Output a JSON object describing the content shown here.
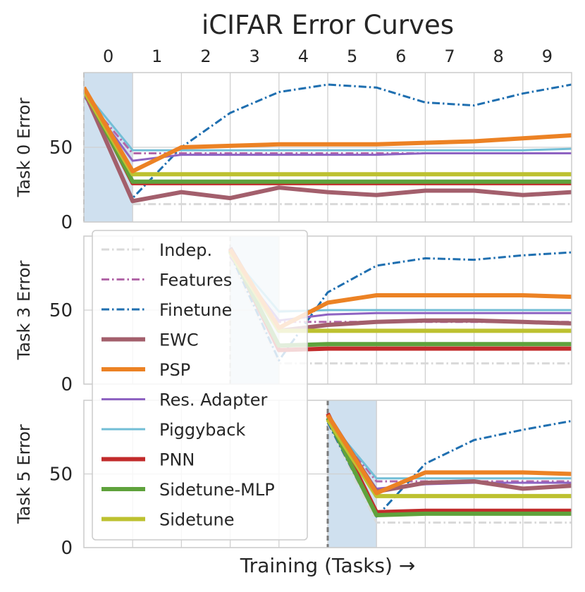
{
  "chart_data": {
    "type": "line",
    "title": "iCIFAR Error Curves",
    "xlabel": "Training (Tasks) →",
    "top_ticks": [
      "0",
      "1",
      "2",
      "3",
      "4",
      "5",
      "6",
      "7",
      "8",
      "9"
    ],
    "xlim": [
      0,
      10
    ],
    "ylim": [
      0,
      100
    ],
    "grid": true,
    "legend": {
      "placement": "left",
      "entries": [
        {
          "label": "Indep.",
          "color": "#d9d9d9",
          "dash": "dashdot",
          "width": "thin"
        },
        {
          "label": "Features",
          "color": "#b267a8",
          "dash": "dashdot",
          "width": "thin"
        },
        {
          "label": "Finetune",
          "color": "#1f6fb0",
          "dash": "dashdot",
          "width": "thin"
        },
        {
          "label": "EWC",
          "color": "#a35f6c",
          "dash": "solid",
          "width": "thick"
        },
        {
          "label": "PSP",
          "color": "#ec8224",
          "dash": "solid",
          "width": "thick"
        },
        {
          "label": "Res. Adapter",
          "color": "#8e63c2",
          "dash": "solid",
          "width": "thin"
        },
        {
          "label": "Piggyback",
          "color": "#72bed6",
          "dash": "solid",
          "width": "thin"
        },
        {
          "label": "PNN",
          "color": "#c22b2b",
          "dash": "solid",
          "width": "thick"
        },
        {
          "label": "Sidetune-MLP",
          "color": "#5fa23c",
          "dash": "solid",
          "width": "thick"
        },
        {
          "label": "Sidetune",
          "color": "#bdc130",
          "dash": "solid",
          "width": "thick"
        }
      ]
    },
    "panels": [
      {
        "ylabel": "Task 0 Error",
        "yticks": [
          0,
          50
        ],
        "shade": [
          0,
          1
        ],
        "start_marker": 0,
        "series": [
          {
            "name": "Indep.",
            "x": [
              0,
              1,
              10
            ],
            "y": [
              86,
              12,
              12
            ]
          },
          {
            "name": "Features",
            "x": [
              0,
              1,
              2,
              3,
              4,
              5,
              6,
              7,
              8,
              9,
              10
            ],
            "y": [
              84,
              46,
              46,
              46,
              46,
              46,
              46,
              46,
              46,
              46,
              46
            ]
          },
          {
            "name": "Finetune",
            "x": [
              0,
              1,
              2,
              3,
              4,
              5,
              6,
              7,
              8,
              9,
              10
            ],
            "y": [
              86,
              16,
              50,
              73,
              87,
              92,
              90,
              80,
              78,
              86,
              92
            ]
          },
          {
            "name": "Res. Adapter",
            "x": [
              0,
              1,
              2,
              3,
              4,
              5,
              6,
              7,
              8,
              9,
              10
            ],
            "y": [
              85,
              41,
              45,
              45,
              45,
              45,
              45,
              46,
              46,
              46,
              46
            ]
          },
          {
            "name": "Piggyback",
            "x": [
              0,
              1,
              2,
              3,
              4,
              5,
              6,
              7,
              8,
              9,
              10
            ],
            "y": [
              88,
              48,
              48,
              48,
              48,
              48,
              48,
              48,
              48,
              48,
              49
            ]
          },
          {
            "name": "EWC",
            "x": [
              0,
              1,
              2,
              3,
              4,
              5,
              6,
              7,
              8,
              9,
              10
            ],
            "y": [
              88,
              14,
              20,
              16,
              23,
              20,
              18,
              21,
              21,
              18,
              20
            ]
          },
          {
            "name": "PNN",
            "x": [
              0,
              1,
              2,
              3,
              4,
              5,
              6,
              7,
              8,
              9,
              10
            ],
            "y": [
              90,
              26,
              26,
              26,
              26,
              26,
              26,
              26,
              26,
              26,
              26
            ]
          },
          {
            "name": "Sidetune-MLP",
            "x": [
              0,
              1,
              2,
              3,
              4,
              5,
              6,
              7,
              8,
              9,
              10
            ],
            "y": [
              89,
              27,
              27,
              27,
              27,
              27,
              27,
              27,
              27,
              27,
              27
            ]
          },
          {
            "name": "Sidetune",
            "x": [
              0,
              1,
              2,
              3,
              4,
              5,
              6,
              7,
              8,
              9,
              10
            ],
            "y": [
              88,
              32,
              32,
              32,
              32,
              32,
              32,
              32,
              32,
              32,
              32
            ]
          },
          {
            "name": "PSP",
            "x": [
              0,
              1,
              2,
              3,
              4,
              5,
              6,
              7,
              8,
              9,
              10
            ],
            "y": [
              90,
              34,
              50,
              51,
              52,
              52,
              52,
              53,
              54,
              56,
              58
            ]
          }
        ]
      },
      {
        "ylabel": "Task 3 Error",
        "yticks": [
          0,
          50
        ],
        "shade": [
          3,
          4
        ],
        "start_marker": 3,
        "series": [
          {
            "name": "Indep.",
            "x": [
              3,
              4,
              10
            ],
            "y": [
              85,
              14,
              14
            ]
          },
          {
            "name": "Features",
            "x": [
              3,
              4,
              5,
              6,
              7,
              8,
              9,
              10
            ],
            "y": [
              86,
              42,
              42,
              42,
              42,
              42,
              42,
              42
            ]
          },
          {
            "name": "Finetune",
            "x": [
              3,
              4,
              5,
              6,
              7,
              8,
              9,
              10
            ],
            "y": [
              88,
              16,
              62,
              80,
              85,
              84,
              87,
              89
            ]
          },
          {
            "name": "Res. Adapter",
            "x": [
              3,
              4,
              5,
              6,
              7,
              8,
              9,
              10
            ],
            "y": [
              86,
              43,
              47,
              48,
              48,
              48,
              48,
              48
            ]
          },
          {
            "name": "Piggyback",
            "x": [
              3,
              4,
              5,
              6,
              7,
              8,
              9,
              10
            ],
            "y": [
              88,
              49,
              50,
              50,
              50,
              50,
              50,
              50
            ]
          },
          {
            "name": "EWC",
            "x": [
              3,
              4,
              5,
              6,
              7,
              8,
              9,
              10
            ],
            "y": [
              92,
              36,
              40,
              42,
              43,
              43,
              42,
              41
            ]
          },
          {
            "name": "PNN",
            "x": [
              3,
              4,
              5,
              6,
              7,
              8,
              9,
              10
            ],
            "y": [
              91,
              23,
              24,
              24,
              24,
              24,
              24,
              24
            ]
          },
          {
            "name": "Sidetune-MLP",
            "x": [
              3,
              4,
              5,
              6,
              7,
              8,
              9,
              10
            ],
            "y": [
              90,
              26,
              27,
              27,
              27,
              27,
              27,
              27
            ]
          },
          {
            "name": "Sidetune",
            "x": [
              3,
              4,
              5,
              6,
              7,
              8,
              9,
              10
            ],
            "y": [
              89,
              36,
              36,
              36,
              36,
              36,
              36,
              36
            ]
          },
          {
            "name": "PSP",
            "x": [
              3,
              4,
              5,
              6,
              7,
              8,
              9,
              10
            ],
            "y": [
              91,
              38,
              55,
              60,
              60,
              60,
              60,
              59
            ]
          }
        ]
      },
      {
        "ylabel": "Task 5 Error",
        "yticks": [
          0,
          50
        ],
        "shade": [
          5,
          6
        ],
        "start_marker": 5,
        "series": [
          {
            "name": "Indep.",
            "x": [
              5,
              6,
              10
            ],
            "y": [
              84,
              17,
              17
            ]
          },
          {
            "name": "Features",
            "x": [
              5,
              6,
              7,
              8,
              9,
              10
            ],
            "y": [
              86,
              45,
              45,
              45,
              45,
              45
            ]
          },
          {
            "name": "Finetune",
            "x": [
              5,
              6,
              7,
              8,
              9,
              10
            ],
            "y": [
              85,
              21,
              57,
              73,
              80,
              86
            ]
          },
          {
            "name": "Res. Adapter",
            "x": [
              5,
              6,
              7,
              8,
              9,
              10
            ],
            "y": [
              86,
              40,
              43,
              44,
              44,
              44
            ]
          },
          {
            "name": "Piggyback",
            "x": [
              5,
              6,
              7,
              8,
              9,
              10
            ],
            "y": [
              87,
              47,
              47,
              47,
              47,
              47
            ]
          },
          {
            "name": "EWC",
            "x": [
              5,
              6,
              7,
              8,
              9,
              10
            ],
            "y": [
              90,
              38,
              44,
              45,
              40,
              42
            ]
          },
          {
            "name": "PNN",
            "x": [
              5,
              6,
              7,
              8,
              9,
              10
            ],
            "y": [
              91,
              24,
              25,
              25,
              25,
              25
            ]
          },
          {
            "name": "Sidetune-MLP",
            "x": [
              5,
              6,
              7,
              8,
              9,
              10
            ],
            "y": [
              88,
              22,
              23,
              23,
              23,
              23
            ]
          },
          {
            "name": "Sidetune",
            "x": [
              5,
              6,
              7,
              8,
              9,
              10
            ],
            "y": [
              87,
              35,
              35,
              35,
              35,
              35
            ]
          },
          {
            "name": "PSP",
            "x": [
              5,
              6,
              7,
              8,
              9,
              10
            ],
            "y": [
              90,
              37,
              51,
              51,
              51,
              50
            ]
          }
        ]
      }
    ]
  }
}
